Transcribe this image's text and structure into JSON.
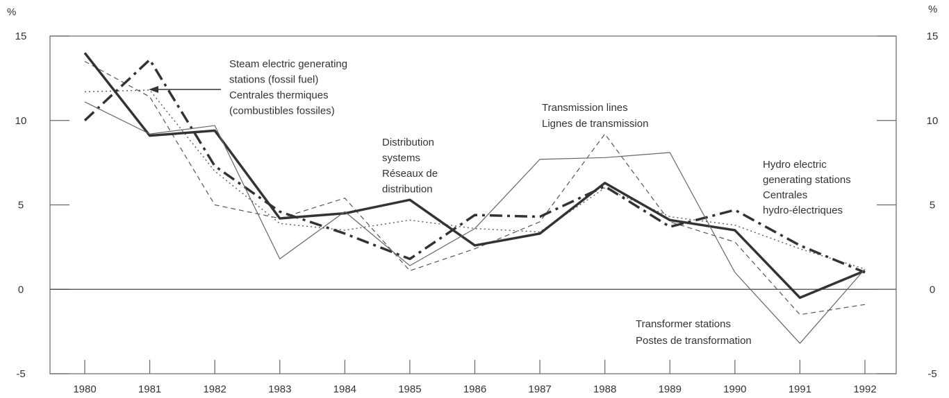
{
  "chart_data": {
    "type": "line",
    "y_unit": "%",
    "categories": [
      "1980",
      "1981",
      "1982",
      "1983",
      "1984",
      "1985",
      "1986",
      "1987",
      "1988",
      "1989",
      "1990",
      "1991",
      "1992"
    ],
    "ylim": [
      -5,
      15
    ],
    "yticks": [
      -5,
      0,
      5,
      10,
      15
    ],
    "y2lim": [
      -5,
      15
    ],
    "y2ticks": [
      -5,
      0,
      5,
      10,
      15
    ],
    "series": [
      {
        "label": [
          "Steam electric generating",
          "stations (fossil fuel)",
          "Centrales thermiques",
          "(combustibles fossiles)"
        ],
        "color": "#555",
        "style": "dotted",
        "values": [
          11.7,
          11.8,
          7.0,
          3.9,
          3.5,
          4.1,
          3.6,
          3.4,
          6.0,
          4.3,
          3.8,
          2.4,
          1.2
        ]
      },
      {
        "label": [
          "Transmission lines",
          "Lignes de transmission"
        ],
        "color": "#555",
        "style": "dashed",
        "values": [
          13.5,
          11.4,
          5.0,
          4.2,
          5.4,
          1.1,
          2.4,
          4.0,
          9.2,
          4.0,
          2.8,
          -1.5,
          -0.9
        ]
      },
      {
        "label": [
          "Distribution",
          "systems",
          "Réseaux de",
          "distribution"
        ],
        "color": "#333",
        "style": "bold",
        "values": [
          14.0,
          9.1,
          9.4,
          4.2,
          4.5,
          5.3,
          2.6,
          3.3,
          6.3,
          4.1,
          3.5,
          -0.5,
          1.1
        ]
      },
      {
        "label": [
          "Hydro electric",
          "generating stations",
          "Centrales",
          "hydro-électriques"
        ],
        "color": "#333",
        "style": "bold-dashdot",
        "values": [
          10.0,
          13.6,
          7.3,
          4.6,
          3.3,
          1.8,
          4.4,
          4.3,
          6.1,
          3.7,
          4.7,
          2.6,
          1.0
        ]
      },
      {
        "label": [
          "Transformer stations",
          "Postes de transformation"
        ],
        "color": "#666",
        "style": "thin",
        "values": [
          11.1,
          9.2,
          9.7,
          1.8,
          4.6,
          1.4,
          3.6,
          7.7,
          7.8,
          8.1,
          1.0,
          -3.2,
          1.2
        ]
      }
    ]
  }
}
